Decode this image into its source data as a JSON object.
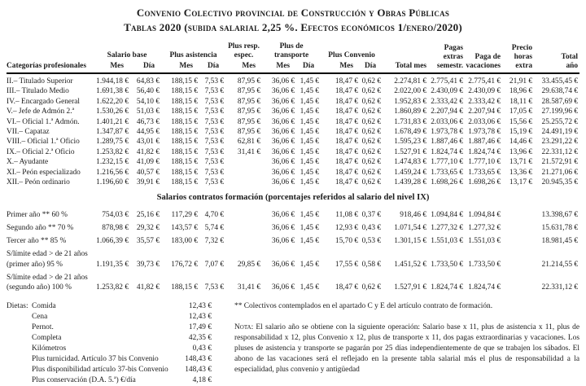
{
  "title": {
    "line1": "Convenio Colectivo provincial de Construcción y Obras Públicas",
    "line2": "Tablas 2020 (subida salarial 2,25 %. Efectos económicos 1/enero/2020)"
  },
  "table": {
    "header": {
      "categories": "Categorías profesionales",
      "salario_base": "Salario base",
      "plus_asistencia": "Plus asistencia",
      "plus_resp_espec": "Plus resp.\nespec.",
      "plus_transporte": "Plus de\ntransporte",
      "plus_convenio": "Plus Convenio",
      "total_mes": "Total mes",
      "pagas_extras": "Pagas\nextras\nsemestr.",
      "paga_vacaciones": "Paga de\nvacaciones",
      "precio_horas": "Precio\nhoras\nextra",
      "total_ano": "Total\naño",
      "mes": "Mes",
      "dia": "Día"
    },
    "rows": [
      {
        "label": "II.– Titulado Superior",
        "values": [
          "1.944,18 €",
          "64,83 €",
          "188,15 €",
          "7,53 €",
          "87,95 €",
          "36,06 €",
          "1,45 €",
          "18,47 €",
          "0,62 €",
          "2.274,81 €",
          "2.775,41 €",
          "2.775,41 €",
          "21,91 €",
          "33.455,45 €"
        ]
      },
      {
        "label": "III.– Titulado Medio",
        "values": [
          "1.691,38 €",
          "56,40 €",
          "188,15 €",
          "7,53 €",
          "87,95 €",
          "36,06 €",
          "1,45 €",
          "18,47 €",
          "0,62 €",
          "2.022,00 €",
          "2.430,09 €",
          "2.430,09 €",
          "18,96 €",
          "29.638,74 €"
        ]
      },
      {
        "label": "IV.– Encargado General",
        "values": [
          "1.622,20 €",
          "54,10 €",
          "188,15 €",
          "7,53 €",
          "87,95 €",
          "36,06 €",
          "1,45 €",
          "18,47 €",
          "0,62 €",
          "1.952,83 €",
          "2.333,42 €",
          "2.333,42 €",
          "18,11 €",
          "28.587,69 €"
        ]
      },
      {
        "label": "V.– Jefe de Admón 2.ª",
        "values": [
          "1.530,26 €",
          "51,03 €",
          "188,15 €",
          "7,53 €",
          "87,95 €",
          "36,06 €",
          "1,45 €",
          "18,47 €",
          "0,62 €",
          "1.860,89 €",
          "2.207,94 €",
          "2.207,94 €",
          "17,05 €",
          "27.199,96 €"
        ]
      },
      {
        "label": "VI.– Oficial 1.ª Admón.",
        "values": [
          "1.401,21 €",
          "46,73 €",
          "188,15 €",
          "7,53 €",
          "87,95 €",
          "36,06 €",
          "1,45 €",
          "18,47 €",
          "0,62 €",
          "1.731,83 €",
          "2.033,06 €",
          "2.033,06 €",
          "15,56 €",
          "25.255,72 €"
        ]
      },
      {
        "label": "VII.– Capataz",
        "values": [
          "1.347,87 €",
          "44,95 €",
          "188,15 €",
          "7,53 €",
          "87,95 €",
          "36,06 €",
          "1,45 €",
          "18,47 €",
          "0,62 €",
          "1.678,49 €",
          "1.973,78 €",
          "1.973,78 €",
          "15,19 €",
          "24.491,19 €"
        ]
      },
      {
        "label": "VIII.– Oficial 1.ª Oficio",
        "values": [
          "1.289,75 €",
          "43,01 €",
          "188,15 €",
          "7,53 €",
          "62,81 €",
          "36,06 €",
          "1,45 €",
          "18,47 €",
          "0,62 €",
          "1.595,23 €",
          "1.887,46 €",
          "1.887,46 €",
          "14,46 €",
          "23.291,22 €"
        ]
      },
      {
        "label": "IX.– Oficial 2.ª Oficio",
        "values": [
          "1.253,82 €",
          "41,82 €",
          "188,15 €",
          "7,53 €",
          "31,41 €",
          "36,06 €",
          "1,45 €",
          "18,47 €",
          "0,62 €",
          "1.527,91 €",
          "1.824,74 €",
          "1.824,74 €",
          "13,96 €",
          "22.331,12 €"
        ]
      },
      {
        "label": "X.– Ayudante",
        "values": [
          "1.232,15 €",
          "41,09 €",
          "188,15 €",
          "7,53 €",
          "",
          "36,06 €",
          "1,45 €",
          "18,47 €",
          "0,62 €",
          "1.474,83 €",
          "1.777,10 €",
          "1.777,10 €",
          "13,71 €",
          "21.572,91 €"
        ]
      },
      {
        "label": "XI.– Peón especializado",
        "values": [
          "1.216,56 €",
          "40,57 €",
          "188,15 €",
          "7,53 €",
          "",
          "36,06 €",
          "1,45 €",
          "18,47 €",
          "0,62 €",
          "1.459,24 €",
          "1.733,65 €",
          "1.733,65 €",
          "13,36 €",
          "21.271,06 €"
        ]
      },
      {
        "label": "XII.– Peón ordinario",
        "values": [
          "1.196,60 €",
          "39,91 €",
          "188,15 €",
          "7,53 €",
          "",
          "36,06 €",
          "1,45 €",
          "18,47 €",
          "0,62 €",
          "1.439,28 €",
          "1.698,26 €",
          "1.698,26 €",
          "13,17 €",
          "20.945,35 €"
        ]
      }
    ],
    "formacion_title": "Salarios contratos formación (porcentajes referidos al salario del nivel IX)",
    "formacion_rows": [
      {
        "label": "Primer año ** 60 %",
        "values": [
          "754,03 €",
          "25,16 €",
          "117,29 €",
          "4,70 €",
          "",
          "36,06 €",
          "1,45 €",
          "11,08 €",
          "0,37 €",
          "918,46 €",
          "1.094,84 €",
          "1.094,84 €",
          "",
          "13.398,67 €"
        ]
      },
      {
        "label": "Segundo año ** 70 %",
        "values": [
          "878,98 €",
          "29,32 €",
          "143,57 €",
          "5,74 €",
          "",
          "36,06 €",
          "1,45 €",
          "12,93 €",
          "0,43 €",
          "1.071,54 €",
          "1.277,32 €",
          "1.277,32 €",
          "",
          "15.631,78 €"
        ]
      },
      {
        "label": "Tercer año ** 85 %",
        "values": [
          "1.066,39 €",
          "35,57 €",
          "183,00 €",
          "7,32 €",
          "",
          "36,06 €",
          "1,45 €",
          "15,70 €",
          "0,53 €",
          "1.301,15 €",
          "1.551,03 €",
          "1.551,03 €",
          "",
          "18.981,45 €"
        ]
      },
      {
        "label": "S/límite edad > de 21 años\n(primer año) 95 %",
        "values": [
          "1.191,35 €",
          "39,73 €",
          "176,72 €",
          "7,07 €",
          "29,85 €",
          "36,06 €",
          "1,45 €",
          "17,55 €",
          "0,58 €",
          "1.451,52 €",
          "1.733,50 €",
          "1.733,50 €",
          "",
          "21.214,55 €"
        ]
      },
      {
        "label": "S/límite edad > de 21 años\n(segundo año) 100 %",
        "values": [
          "1.253,82 €",
          "41,82 €",
          "188,15 €",
          "7,53 €",
          "31,41 €",
          "36,06 €",
          "1,45 €",
          "18,47 €",
          "0,62 €",
          "1.527,91 €",
          "1.824,74 €",
          "1.824,74 €",
          "",
          "22.331,12 €"
        ]
      }
    ]
  },
  "dietas": {
    "items": [
      {
        "prefix": "Dietas:",
        "label": "Comida",
        "value": "12,43 €"
      },
      {
        "prefix": "",
        "label": "Cena",
        "value": "12,43 €"
      },
      {
        "prefix": "",
        "label": "Pernot.",
        "value": "17,49 €"
      },
      {
        "prefix": "",
        "label": "Completa",
        "value": "42,35 €"
      },
      {
        "prefix": "",
        "label": "Kilómetros",
        "value": "0,43 €"
      },
      {
        "prefix": "",
        "label": "Plus turnicidad. Artículo 37 bis Convenio",
        "value": "148,43 €"
      },
      {
        "prefix": "",
        "label": "Plus disponibilidad artículo 37-bis Convenio",
        "value": "148,43 €"
      },
      {
        "prefix": "",
        "label": "Plus conservación (D.A. 5.ª) €/día",
        "value": "4,18 €"
      }
    ]
  },
  "notes": {
    "colectivos": "** Colectivos contemplados en el apartado C y E del artículo contrato de formación.",
    "nota_label": "Nota:",
    "nota_text": " El salario año se obtiene con la siguiente operación: Salario base x 11, plus de asistencia x 11, plus de responsabilidad x 12, plus Convenio x 12, plus de transporte x 11, dos pagas extraordinarias y vacaciones. Los pluses de asistencia y transporte se pagarán por 25 días independientemente de que se trabajen los sábados. El abono de las vacaciones será el reflejado en la presente tabla salarial más el plus de responsabilidad a la especialidad, plus convenio y antigüedad"
  }
}
